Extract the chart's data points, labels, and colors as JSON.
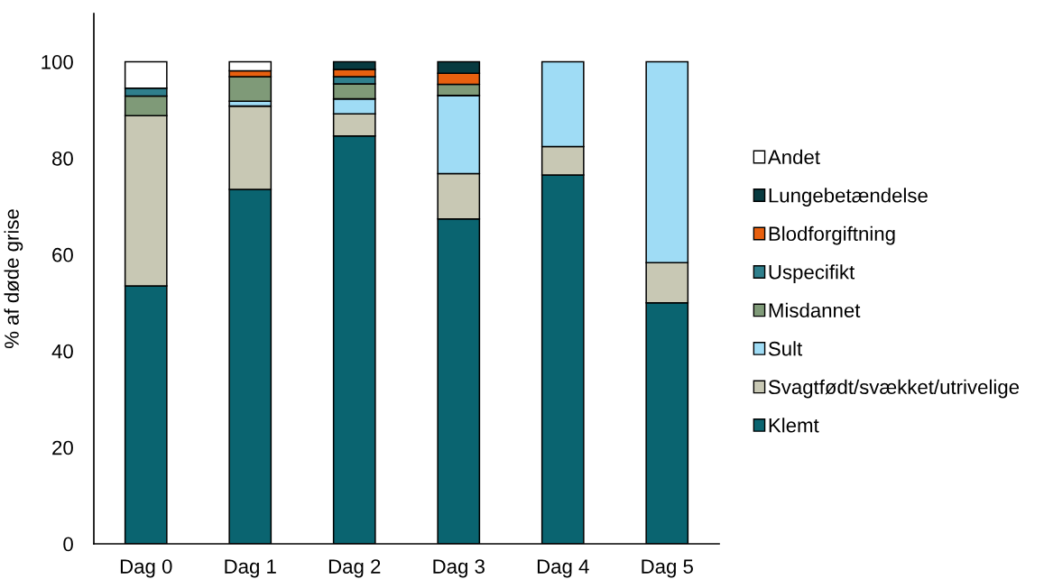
{
  "chart_data": {
    "type": "bar",
    "stacked": true,
    "categories": [
      "Dag 0",
      "Dag 1",
      "Dag 2",
      "Dag 3",
      "Dag 4",
      "Dag 5"
    ],
    "series": [
      {
        "name": "Klemt",
        "color": "#0a6470",
        "values": [
          53.5,
          73.5,
          84.6,
          67.4,
          76.5,
          50.0
        ]
      },
      {
        "name": "Svagtfødt/svækket/utrivelige",
        "color": "#c8c8b4",
        "values": [
          35.3,
          17.3,
          4.6,
          9.4,
          5.9,
          8.3
        ]
      },
      {
        "name": "Sult",
        "color": "#9fdcf5",
        "values": [
          null,
          1.0,
          3.1,
          16.2,
          17.6,
          41.7
        ]
      },
      {
        "name": "Misdannet",
        "color": "#7f9a78",
        "values": [
          4.1,
          5.1,
          3.1,
          2.3,
          null,
          null
        ]
      },
      {
        "name": "Uspecifikt",
        "color": "#2f7f8c",
        "values": [
          1.6,
          null,
          1.5,
          null,
          null,
          null
        ]
      },
      {
        "name": "Blodforgiftning",
        "color": "#e8600f",
        "values": [
          null,
          1.2,
          1.5,
          2.3,
          null,
          null
        ]
      },
      {
        "name": "Lungebetændelse",
        "color": "#073a40",
        "values": [
          null,
          null,
          1.6,
          2.4,
          null,
          null
        ]
      },
      {
        "name": "Andet",
        "color": "#ffffff",
        "values": [
          5.5,
          1.9,
          null,
          null,
          null,
          null
        ]
      }
    ],
    "ylabel": "% af døde grise",
    "ylim": [
      0,
      110
    ],
    "yticks": [
      0,
      20,
      40,
      60,
      80,
      100
    ],
    "grid": false,
    "legend": "right"
  }
}
